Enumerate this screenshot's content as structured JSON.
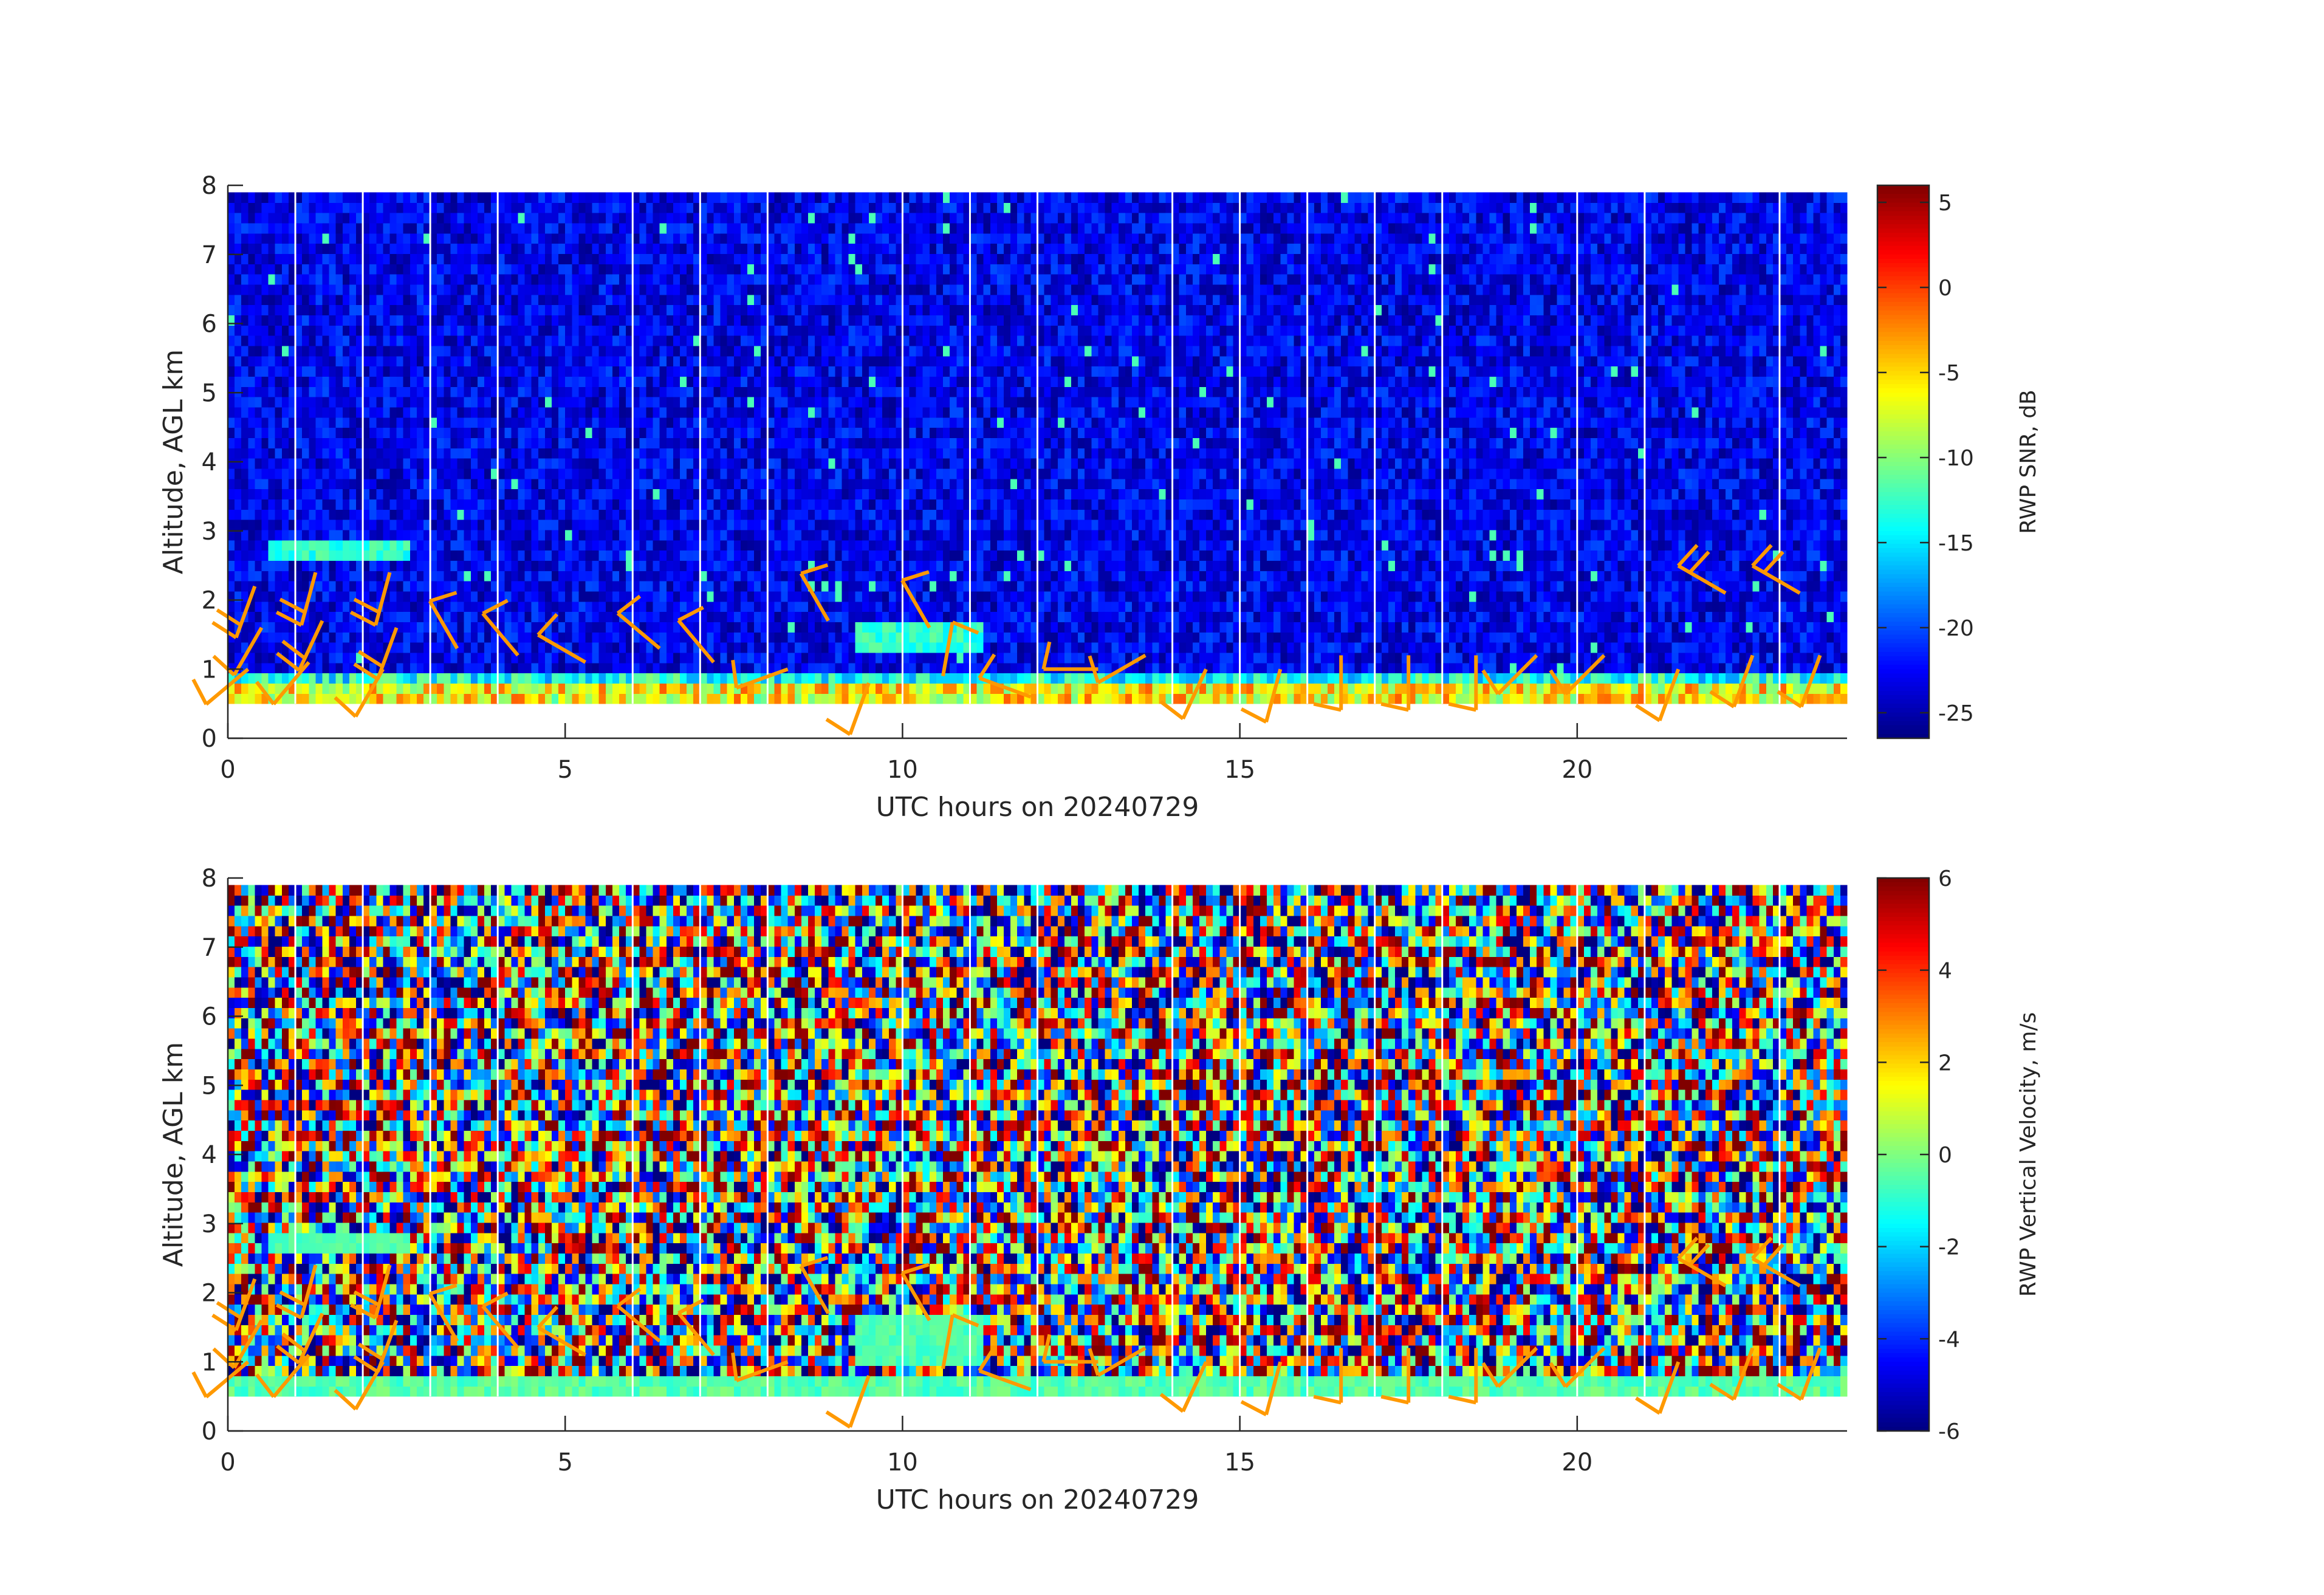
{
  "chart_data": [
    {
      "type": "heatmap",
      "title": "",
      "xlabel": "UTC hours on 20240729",
      "ylabel": "Altitude, AGL km",
      "xlim": [
        0,
        24
      ],
      "ylim": [
        0,
        8
      ],
      "x_ticks": [
        "0",
        "5",
        "10",
        "15",
        "20"
      ],
      "y_ticks": [
        "0",
        "1",
        "2",
        "3",
        "4",
        "5",
        "6",
        "7",
        "8"
      ],
      "colorbar": {
        "label": "RWP SNR, dB",
        "colormap": "jet",
        "range": [
          -26.5,
          6
        ],
        "ticks": [
          "5",
          "0",
          "-5",
          "-10",
          "-15",
          "-20",
          "-25"
        ]
      },
      "field": "snr",
      "data_altitude_range_km": [
        0.5,
        7.9
      ],
      "gap_hours": [
        1,
        2,
        3,
        4,
        6,
        7,
        8,
        10,
        11,
        12,
        14,
        15,
        16,
        17,
        18,
        20,
        21,
        23
      ],
      "overlays": {
        "wind_barb_color": "#ff9900",
        "description_free": true
      }
    },
    {
      "type": "heatmap",
      "title": "",
      "xlabel": "UTC hours on 20240729",
      "ylabel": "Altitude, AGL km",
      "xlim": [
        0,
        24
      ],
      "ylim": [
        0,
        8
      ],
      "x_ticks": [
        "0",
        "5",
        "10",
        "15",
        "20"
      ],
      "y_ticks": [
        "0",
        "1",
        "2",
        "3",
        "4",
        "5",
        "6",
        "7",
        "8"
      ],
      "colorbar": {
        "label": "RWP Vertical Velocity, m/s",
        "colormap": "jet",
        "range": [
          -6,
          6
        ],
        "ticks": [
          "6",
          "4",
          "2",
          "0",
          "-2",
          "-4",
          "-6"
        ]
      },
      "field": "velocity",
      "data_altitude_range_km": [
        0.5,
        7.9
      ],
      "gap_hours": [
        1,
        2,
        3,
        4,
        6,
        7,
        8,
        10,
        11,
        12,
        14,
        15,
        16,
        17,
        18,
        20,
        21,
        23
      ],
      "overlays": {
        "wind_barb_color": "#ff9900"
      }
    }
  ],
  "wind_barbs": [
    {
      "t": 0.4,
      "z": 2.2,
      "dir": 200,
      "spd": 15
    },
    {
      "t": 0.5,
      "z": 1.6,
      "dir": 210,
      "spd": 12
    },
    {
      "t": 0.3,
      "z": 1.0,
      "dir": 230,
      "spd": 10
    },
    {
      "t": 1.3,
      "z": 2.4,
      "dir": 195,
      "spd": 20
    },
    {
      "t": 1.4,
      "z": 1.7,
      "dir": 205,
      "spd": 15
    },
    {
      "t": 1.2,
      "z": 1.1,
      "dir": 220,
      "spd": 10
    },
    {
      "t": 2.4,
      "z": 2.4,
      "dir": 195,
      "spd": 20
    },
    {
      "t": 2.5,
      "z": 1.6,
      "dir": 200,
      "spd": 15
    },
    {
      "t": 2.3,
      "z": 1.0,
      "dir": 210,
      "spd": 10
    },
    {
      "t": 3.4,
      "z": 1.3,
      "dir": 330,
      "spd": 10
    },
    {
      "t": 4.3,
      "z": 1.2,
      "dir": 320,
      "spd": 10
    },
    {
      "t": 5.3,
      "z": 1.1,
      "dir": 300,
      "spd": 10
    },
    {
      "t": 6.4,
      "z": 1.3,
      "dir": 310,
      "spd": 10
    },
    {
      "t": 7.2,
      "z": 1.1,
      "dir": 320,
      "spd": 10
    },
    {
      "t": 8.3,
      "z": 1.0,
      "dir": 250,
      "spd": 10
    },
    {
      "t": 8.9,
      "z": 1.7,
      "dir": 330,
      "spd": 10
    },
    {
      "t": 9.5,
      "z": 0.8,
      "dir": 200,
      "spd": 10
    },
    {
      "t": 10.4,
      "z": 1.6,
      "dir": 330,
      "spd": 10
    },
    {
      "t": 10.6,
      "z": 0.9,
      "dir": 10,
      "spd": 10
    },
    {
      "t": 11.9,
      "z": 0.6,
      "dir": 290,
      "spd": 10
    },
    {
      "t": 12.9,
      "z": 1.0,
      "dir": 270,
      "spd": 10
    },
    {
      "t": 13.6,
      "z": 1.2,
      "dir": 240,
      "spd": 10
    },
    {
      "t": 14.5,
      "z": 1.0,
      "dir": 205,
      "spd": 10
    },
    {
      "t": 15.6,
      "z": 1.0,
      "dir": 195,
      "spd": 10
    },
    {
      "t": 16.5,
      "z": 1.2,
      "dir": 180,
      "spd": 10
    },
    {
      "t": 17.5,
      "z": 1.2,
      "dir": 180,
      "spd": 10
    },
    {
      "t": 18.5,
      "z": 1.2,
      "dir": 180,
      "spd": 10
    },
    {
      "t": 19.4,
      "z": 1.2,
      "dir": 225,
      "spd": 10
    },
    {
      "t": 20.4,
      "z": 1.2,
      "dir": 225,
      "spd": 10
    },
    {
      "t": 21.5,
      "z": 1.0,
      "dir": 200,
      "spd": 10
    },
    {
      "t": 22.2,
      "z": 2.1,
      "dir": 300,
      "spd": 15
    },
    {
      "t": 22.6,
      "z": 1.2,
      "dir": 200,
      "spd": 10
    },
    {
      "t": 23.3,
      "z": 2.1,
      "dir": 300,
      "spd": 15
    },
    {
      "t": 23.6,
      "z": 1.2,
      "dir": 200,
      "spd": 10
    }
  ]
}
